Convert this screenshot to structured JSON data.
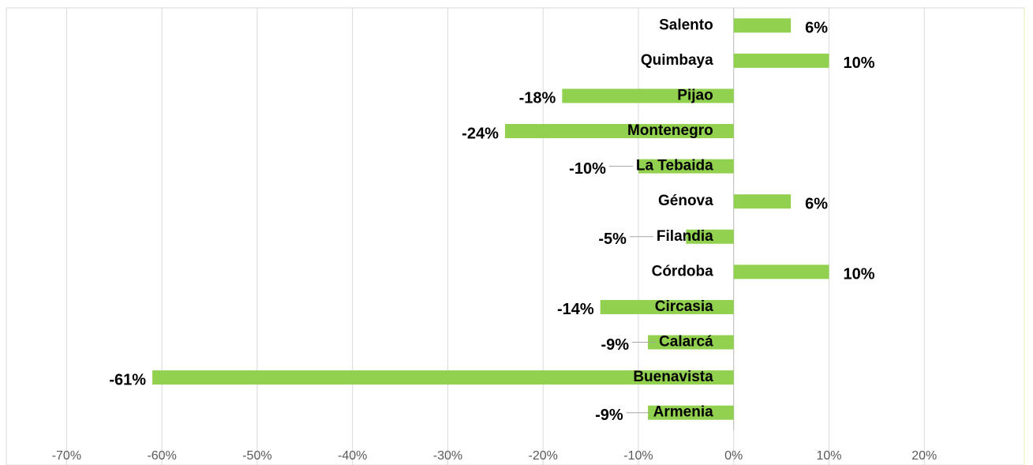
{
  "chart_data": {
    "type": "hbar",
    "categories": [
      "Salento",
      "Quimbaya",
      "Pijao",
      "Montenegro",
      "La Tebaida",
      "Génova",
      "Filandia",
      "Córdoba",
      "Circasia",
      "Calarcá",
      "Buenavista",
      "Armenia"
    ],
    "values": [
      6,
      10,
      -18,
      -24,
      -10,
      6,
      -5,
      10,
      -14,
      -9,
      -61,
      -9
    ],
    "value_labels": [
      "6%",
      "10%",
      "-18%",
      "-24%",
      "-10%",
      "6%",
      "-5%",
      "10%",
      "-14%",
      "-9%",
      "-61%",
      "-9%"
    ],
    "color": "#92d050",
    "xlim": [
      -75,
      30
    ],
    "xticks": [
      {
        "value": -70,
        "label": "-70%"
      },
      {
        "value": -60,
        "label": "-60%"
      },
      {
        "value": -50,
        "label": "-50%"
      },
      {
        "value": -40,
        "label": "-40%"
      },
      {
        "value": -30,
        "label": "-30%"
      },
      {
        "value": -20,
        "label": "-20%"
      },
      {
        "value": -10,
        "label": "-10%"
      },
      {
        "value": 0,
        "label": "0%"
      },
      {
        "value": 10,
        "label": "10%"
      },
      {
        "value": 20,
        "label": "20%"
      }
    ],
    "grid": true
  }
}
